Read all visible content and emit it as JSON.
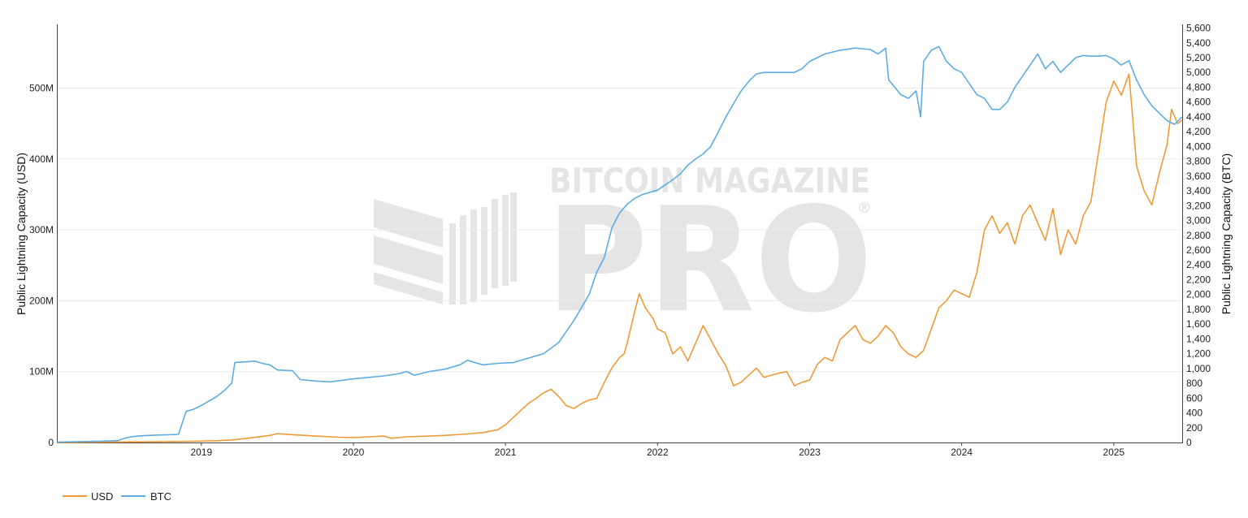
{
  "chart_data": {
    "type": "line",
    "y_left_label": "Public Lightning Capacity (USD)",
    "y_right_label": "Public Lightning Capacity (BTC)",
    "x_ticks": [
      "2019",
      "2020",
      "2021",
      "2022",
      "2023",
      "2024",
      "2025"
    ],
    "y_left_ticks": [
      {
        "value": 0,
        "label": "0"
      },
      {
        "value": 100000000,
        "label": "100M"
      },
      {
        "value": 200000000,
        "label": "200M"
      },
      {
        "value": 300000000,
        "label": "300M"
      },
      {
        "value": 400000000,
        "label": "400M"
      },
      {
        "value": 500000000,
        "label": "500M"
      }
    ],
    "y_right_ticks": [
      "0",
      "200",
      "400",
      "600",
      "800",
      "1,000",
      "1,200",
      "1,400",
      "1,600",
      "1,800",
      "2,000",
      "2,200",
      "2,400",
      "2,600",
      "2,800",
      "3,000",
      "3,200",
      "3,400",
      "3,600",
      "3,800",
      "4,000",
      "4,200",
      "4,400",
      "4,600",
      "4,800",
      "5,000",
      "5,200",
      "5,400",
      "5,600"
    ],
    "x_range": [
      2018.05,
      2025.45
    ],
    "y_left_range": [
      0,
      590000000
    ],
    "y_right_range": [
      0,
      5650
    ],
    "grid": "horizontal",
    "legend_position": "bottom-left",
    "series": [
      {
        "name": "USD",
        "axis": "left",
        "color": "#f09a37",
        "points": [
          [
            2018.05,
            100000
          ],
          [
            2018.5,
            800000
          ],
          [
            2018.9,
            1500000
          ],
          [
            2019.1,
            2500000
          ],
          [
            2019.2,
            3500000
          ],
          [
            2019.3,
            6000000
          ],
          [
            2019.45,
            10000000
          ],
          [
            2019.5,
            12500000
          ],
          [
            2019.6,
            11000000
          ],
          [
            2019.75,
            9000000
          ],
          [
            2019.9,
            7500000
          ],
          [
            2020.0,
            7000000
          ],
          [
            2020.1,
            8000000
          ],
          [
            2020.2,
            9000000
          ],
          [
            2020.25,
            6000000
          ],
          [
            2020.35,
            8000000
          ],
          [
            2020.5,
            9000000
          ],
          [
            2020.6,
            10000000
          ],
          [
            2020.75,
            12000000
          ],
          [
            2020.85,
            14000000
          ],
          [
            2020.95,
            18000000
          ],
          [
            2021.0,
            25000000
          ],
          [
            2021.05,
            35000000
          ],
          [
            2021.1,
            45000000
          ],
          [
            2021.15,
            55000000
          ],
          [
            2021.2,
            62000000
          ],
          [
            2021.25,
            70000000
          ],
          [
            2021.3,
            75000000
          ],
          [
            2021.35,
            65000000
          ],
          [
            2021.4,
            52000000
          ],
          [
            2021.45,
            48000000
          ],
          [
            2021.5,
            55000000
          ],
          [
            2021.55,
            60000000
          ],
          [
            2021.6,
            62000000
          ],
          [
            2021.65,
            85000000
          ],
          [
            2021.7,
            105000000
          ],
          [
            2021.75,
            120000000
          ],
          [
            2021.78,
            125000000
          ],
          [
            2021.8,
            140000000
          ],
          [
            2021.85,
            185000000
          ],
          [
            2021.88,
            210000000
          ],
          [
            2021.92,
            190000000
          ],
          [
            2021.97,
            175000000
          ],
          [
            2022.0,
            160000000
          ],
          [
            2022.05,
            155000000
          ],
          [
            2022.1,
            125000000
          ],
          [
            2022.15,
            135000000
          ],
          [
            2022.2,
            115000000
          ],
          [
            2022.25,
            140000000
          ],
          [
            2022.3,
            165000000
          ],
          [
            2022.35,
            145000000
          ],
          [
            2022.4,
            125000000
          ],
          [
            2022.45,
            108000000
          ],
          [
            2022.5,
            80000000
          ],
          [
            2022.55,
            85000000
          ],
          [
            2022.6,
            95000000
          ],
          [
            2022.65,
            105000000
          ],
          [
            2022.7,
            92000000
          ],
          [
            2022.75,
            95000000
          ],
          [
            2022.8,
            98000000
          ],
          [
            2022.85,
            100000000
          ],
          [
            2022.9,
            80000000
          ],
          [
            2022.95,
            85000000
          ],
          [
            2023.0,
            88000000
          ],
          [
            2023.05,
            110000000
          ],
          [
            2023.1,
            120000000
          ],
          [
            2023.15,
            115000000
          ],
          [
            2023.2,
            145000000
          ],
          [
            2023.25,
            155000000
          ],
          [
            2023.3,
            165000000
          ],
          [
            2023.35,
            145000000
          ],
          [
            2023.4,
            140000000
          ],
          [
            2023.45,
            150000000
          ],
          [
            2023.5,
            165000000
          ],
          [
            2023.55,
            155000000
          ],
          [
            2023.6,
            135000000
          ],
          [
            2023.65,
            125000000
          ],
          [
            2023.7,
            120000000
          ],
          [
            2023.75,
            130000000
          ],
          [
            2023.8,
            160000000
          ],
          [
            2023.85,
            190000000
          ],
          [
            2023.9,
            200000000
          ],
          [
            2023.95,
            215000000
          ],
          [
            2024.0,
            210000000
          ],
          [
            2024.05,
            205000000
          ],
          [
            2024.1,
            240000000
          ],
          [
            2024.15,
            300000000
          ],
          [
            2024.2,
            320000000
          ],
          [
            2024.25,
            295000000
          ],
          [
            2024.3,
            310000000
          ],
          [
            2024.35,
            280000000
          ],
          [
            2024.4,
            320000000
          ],
          [
            2024.45,
            335000000
          ],
          [
            2024.5,
            310000000
          ],
          [
            2024.55,
            285000000
          ],
          [
            2024.6,
            330000000
          ],
          [
            2024.65,
            265000000
          ],
          [
            2024.7,
            300000000
          ],
          [
            2024.75,
            280000000
          ],
          [
            2024.8,
            320000000
          ],
          [
            2024.85,
            340000000
          ],
          [
            2024.9,
            410000000
          ],
          [
            2024.95,
            480000000
          ],
          [
            2025.0,
            510000000
          ],
          [
            2025.05,
            490000000
          ],
          [
            2025.1,
            520000000
          ],
          [
            2025.12,
            470000000
          ],
          [
            2025.15,
            390000000
          ],
          [
            2025.2,
            355000000
          ],
          [
            2025.25,
            335000000
          ],
          [
            2025.3,
            380000000
          ],
          [
            2025.35,
            420000000
          ],
          [
            2025.38,
            470000000
          ],
          [
            2025.42,
            450000000
          ],
          [
            2025.45,
            455000000
          ]
        ]
      },
      {
        "name": "BTC",
        "axis": "right",
        "color": "#5dade2",
        "points": [
          [
            2018.05,
            5
          ],
          [
            2018.3,
            15
          ],
          [
            2018.45,
            25
          ],
          [
            2018.5,
            60
          ],
          [
            2018.55,
            80
          ],
          [
            2018.6,
            90
          ],
          [
            2018.7,
            100
          ],
          [
            2018.85,
            110
          ],
          [
            2018.9,
            420
          ],
          [
            2018.95,
            450
          ],
          [
            2019.0,
            500
          ],
          [
            2019.05,
            560
          ],
          [
            2019.1,
            620
          ],
          [
            2019.15,
            700
          ],
          [
            2019.2,
            800
          ],
          [
            2019.22,
            1080
          ],
          [
            2019.3,
            1090
          ],
          [
            2019.35,
            1100
          ],
          [
            2019.4,
            1070
          ],
          [
            2019.45,
            1050
          ],
          [
            2019.5,
            980
          ],
          [
            2019.6,
            970
          ],
          [
            2019.65,
            850
          ],
          [
            2019.75,
            830
          ],
          [
            2019.85,
            820
          ],
          [
            2020.0,
            860
          ],
          [
            2020.1,
            880
          ],
          [
            2020.2,
            900
          ],
          [
            2020.3,
            930
          ],
          [
            2020.35,
            960
          ],
          [
            2020.4,
            910
          ],
          [
            2020.5,
            960
          ],
          [
            2020.6,
            990
          ],
          [
            2020.7,
            1050
          ],
          [
            2020.75,
            1110
          ],
          [
            2020.8,
            1080
          ],
          [
            2020.85,
            1050
          ],
          [
            2020.95,
            1070
          ],
          [
            2021.05,
            1080
          ],
          [
            2021.15,
            1140
          ],
          [
            2021.25,
            1200
          ],
          [
            2021.35,
            1350
          ],
          [
            2021.45,
            1650
          ],
          [
            2021.55,
            2000
          ],
          [
            2021.6,
            2300
          ],
          [
            2021.65,
            2500
          ],
          [
            2021.7,
            2900
          ],
          [
            2021.75,
            3100
          ],
          [
            2021.8,
            3220
          ],
          [
            2021.85,
            3300
          ],
          [
            2021.9,
            3350
          ],
          [
            2021.95,
            3380
          ],
          [
            2022.0,
            3410
          ],
          [
            2022.05,
            3480
          ],
          [
            2022.1,
            3550
          ],
          [
            2022.15,
            3630
          ],
          [
            2022.2,
            3750
          ],
          [
            2022.25,
            3830
          ],
          [
            2022.3,
            3900
          ],
          [
            2022.35,
            4000
          ],
          [
            2022.4,
            4200
          ],
          [
            2022.45,
            4400
          ],
          [
            2022.5,
            4580
          ],
          [
            2022.55,
            4750
          ],
          [
            2022.6,
            4880
          ],
          [
            2022.65,
            4980
          ],
          [
            2022.7,
            5000
          ],
          [
            2022.9,
            5000
          ],
          [
            2022.95,
            5050
          ],
          [
            2023.0,
            5150
          ],
          [
            2023.1,
            5250
          ],
          [
            2023.2,
            5300
          ],
          [
            2023.3,
            5330
          ],
          [
            2023.4,
            5310
          ],
          [
            2023.45,
            5250
          ],
          [
            2023.5,
            5330
          ],
          [
            2023.52,
            4900
          ],
          [
            2023.6,
            4700
          ],
          [
            2023.65,
            4650
          ],
          [
            2023.7,
            4750
          ],
          [
            2023.73,
            4400
          ],
          [
            2023.75,
            5150
          ],
          [
            2023.8,
            5300
          ],
          [
            2023.85,
            5350
          ],
          [
            2023.9,
            5150
          ],
          [
            2023.95,
            5050
          ],
          [
            2024.0,
            5000
          ],
          [
            2024.05,
            4850
          ],
          [
            2024.1,
            4700
          ],
          [
            2024.15,
            4650
          ],
          [
            2024.2,
            4500
          ],
          [
            2024.25,
            4500
          ],
          [
            2024.3,
            4600
          ],
          [
            2024.35,
            4800
          ],
          [
            2024.4,
            4950
          ],
          [
            2024.45,
            5100
          ],
          [
            2024.5,
            5250
          ],
          [
            2024.55,
            5050
          ],
          [
            2024.6,
            5150
          ],
          [
            2024.65,
            5000
          ],
          [
            2024.7,
            5100
          ],
          [
            2024.75,
            5200
          ],
          [
            2024.8,
            5230
          ],
          [
            2024.85,
            5220
          ],
          [
            2024.9,
            5220
          ],
          [
            2024.95,
            5230
          ],
          [
            2025.0,
            5180
          ],
          [
            2025.05,
            5100
          ],
          [
            2025.1,
            5160
          ],
          [
            2025.15,
            4900
          ],
          [
            2025.2,
            4700
          ],
          [
            2025.25,
            4550
          ],
          [
            2025.3,
            4450
          ],
          [
            2025.35,
            4350
          ],
          [
            2025.4,
            4300
          ],
          [
            2025.45,
            4400
          ]
        ]
      }
    ]
  },
  "watermark": {
    "top": "BITCOIN MAGAZINE",
    "main": "PRO",
    "mark": "®"
  }
}
